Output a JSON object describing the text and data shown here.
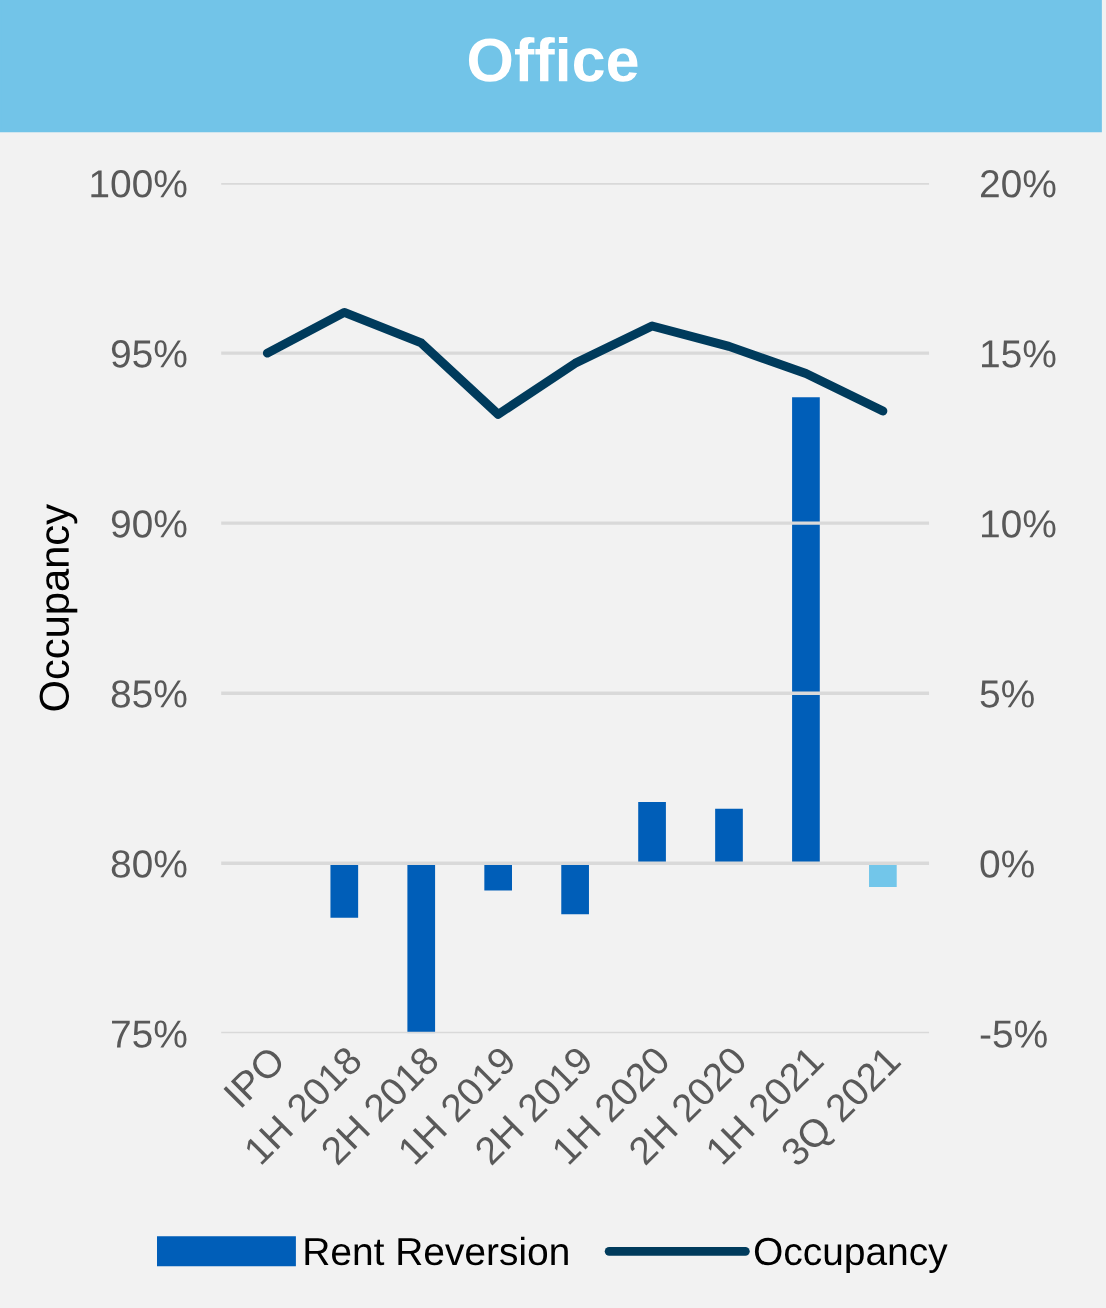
{
  "chart_data": {
    "type": "bar",
    "title": "Office",
    "ylabel": "Occupancy",
    "categories": [
      "IPO",
      "1H 2018",
      "2H 2018",
      "1H 2019",
      "2H 2019",
      "1H 2020",
      "2H 2020",
      "1H 2021",
      "3Q 2021"
    ],
    "series": [
      {
        "name": "Rent Reversion",
        "axis": "y2",
        "color": "#005eb8",
        "colors": [
          "#005eb8",
          "#005eb8",
          "#005eb8",
          "#005eb8",
          "#005eb8",
          "#005eb8",
          "#005eb8",
          "#005eb8",
          "#72c6ea"
        ],
        "values": [
          null,
          -1.6,
          -5.0,
          -0.8,
          -1.5,
          1.8,
          1.6,
          13.7,
          -0.7
        ]
      },
      {
        "name": "Occupancy",
        "type": "line",
        "color": "#003b5c",
        "values": [
          95.0,
          96.2,
          95.3,
          93.2,
          94.7,
          95.8,
          95.2,
          94.4,
          93.3
        ]
      }
    ],
    "ylim": [
      75,
      100
    ],
    "yticks": [
      {
        "value": 75,
        "label": "75%"
      },
      {
        "value": 80,
        "label": "80%"
      },
      {
        "value": 85,
        "label": "85%"
      },
      {
        "value": 90,
        "label": "90%"
      },
      {
        "value": 95,
        "label": "95%"
      },
      {
        "value": 100,
        "label": "100%"
      }
    ],
    "y2lim": [
      -5,
      20
    ],
    "y2ticks": [
      {
        "value": -5,
        "label": "-5%"
      },
      {
        "value": 0,
        "label": "0%"
      },
      {
        "value": 5,
        "label": "5%"
      },
      {
        "value": 10,
        "label": "10%"
      },
      {
        "value": 15,
        "label": "15%"
      },
      {
        "value": 20,
        "label": "20%"
      }
    ],
    "grid": "y",
    "legend": "bottom",
    "marker": "none",
    "line_style": "solid"
  }
}
